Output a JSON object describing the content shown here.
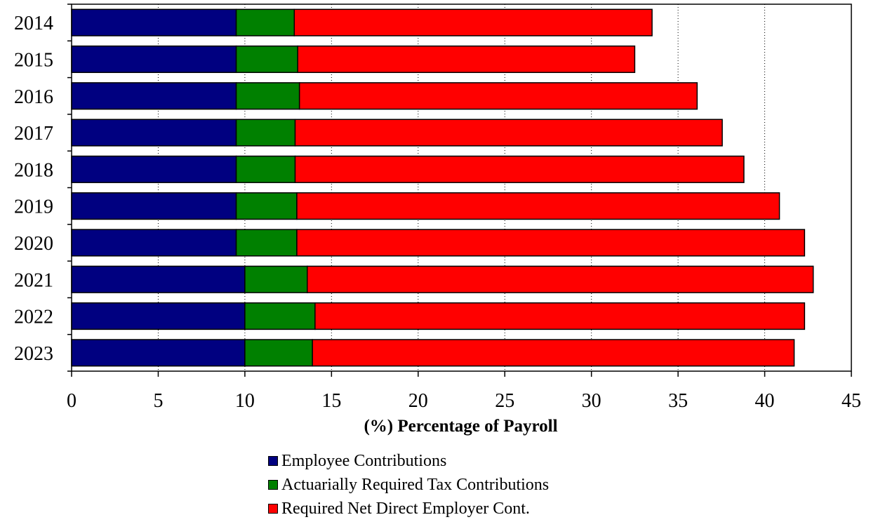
{
  "chart_data": {
    "type": "bar",
    "orientation": "horizontal",
    "stacked": true,
    "categories": [
      "2014",
      "2015",
      "2016",
      "2017",
      "2018",
      "2019",
      "2020",
      "2021",
      "2022",
      "2023"
    ],
    "series": [
      {
        "name": "Employee Contributions",
        "color": "#000080",
        "values": [
          9.5,
          9.5,
          9.5,
          9.5,
          9.5,
          9.5,
          9.5,
          10.0,
          10.0,
          10.0
        ]
      },
      {
        "name": "Actuarially Required Tax Contributions",
        "color": "#008000",
        "values": [
          3.35,
          3.55,
          3.65,
          3.4,
          3.4,
          3.5,
          3.5,
          3.6,
          4.05,
          3.9
        ]
      },
      {
        "name": "Required Net Direct Employer Cont.",
        "color": "#ff0000",
        "values": [
          20.65,
          19.45,
          22.95,
          24.65,
          25.9,
          27.85,
          29.3,
          29.2,
          28.25,
          27.8
        ]
      }
    ],
    "xlabel": "(%) Percentage of Payroll",
    "ylabel": "",
    "xlim": [
      0,
      45
    ],
    "xticks": [
      0,
      5,
      10,
      15,
      20,
      25,
      30,
      35,
      40,
      45
    ],
    "grid": "vertical dotted",
    "legend": "bottom"
  }
}
